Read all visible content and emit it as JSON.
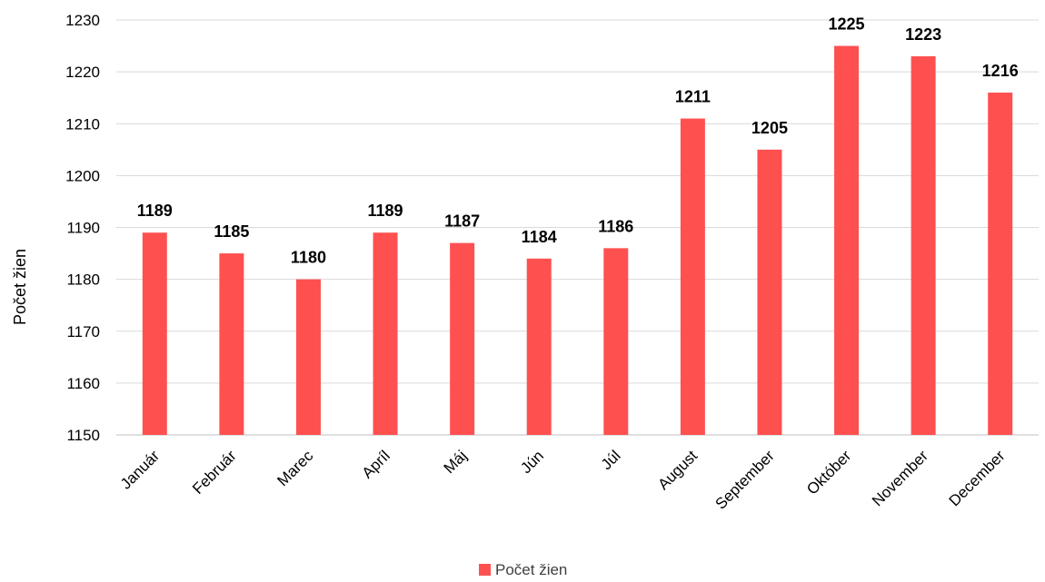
{
  "chart_data": {
    "type": "bar",
    "title": "",
    "xlabel": "",
    "ylabel": "Počet žien",
    "ylim": [
      1150,
      1230
    ],
    "yticks": [
      1150,
      1160,
      1170,
      1180,
      1190,
      1200,
      1210,
      1220,
      1230
    ],
    "grid": true,
    "legend_position": "bottom",
    "categories": [
      "Január",
      "Február",
      "Marec",
      "Apríl",
      "Máj",
      "Jún",
      "Júl",
      "August",
      "September",
      "Október",
      "November",
      "December"
    ],
    "series": [
      {
        "name": "Počet žien",
        "color": "#FF5050",
        "values": [
          1189,
          1185,
          1180,
          1189,
          1187,
          1184,
          1186,
          1211,
          1205,
          1225,
          1223,
          1216
        ]
      }
    ]
  }
}
